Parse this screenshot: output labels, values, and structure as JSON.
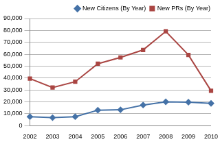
{
  "chart_data": {
    "type": "line",
    "categories": [
      "2002",
      "2003",
      "2004",
      "2005",
      "2006",
      "2007",
      "2008",
      "2009",
      "2010"
    ],
    "series": [
      {
        "name": "New Citizens (By Year)",
        "color": "#4572a7",
        "marker": "diamond",
        "line_style": "solid",
        "values": [
          7500,
          6700,
          7500,
          13000,
          13300,
          17300,
          20000,
          19700,
          18700
        ]
      },
      {
        "name": "New PRs (By Year)",
        "color": "#aa4643",
        "marker": "square",
        "line_style": "solid",
        "values": [
          39500,
          32000,
          36900,
          52000,
          57300,
          63600,
          79200,
          59400,
          29300
        ]
      }
    ],
    "ylim": [
      0,
      90000
    ],
    "yticks": [
      0,
      {
        "value": 10000,
        "label": "10,000"
      },
      {
        "value": 20000,
        "label": "20,000"
      },
      {
        "value": 30000,
        "label": "30,000"
      },
      {
        "value": 40000,
        "label": "40,000"
      },
      {
        "value": 50000,
        "label": "50,000"
      },
      {
        "value": 60000,
        "label": "60,000"
      },
      {
        "value": 70000,
        "label": "70,000"
      },
      {
        "value": 80000,
        "label": "80,000"
      },
      {
        "value": 90000,
        "label": "90,000"
      }
    ],
    "grid": true,
    "legend": "top-right"
  }
}
